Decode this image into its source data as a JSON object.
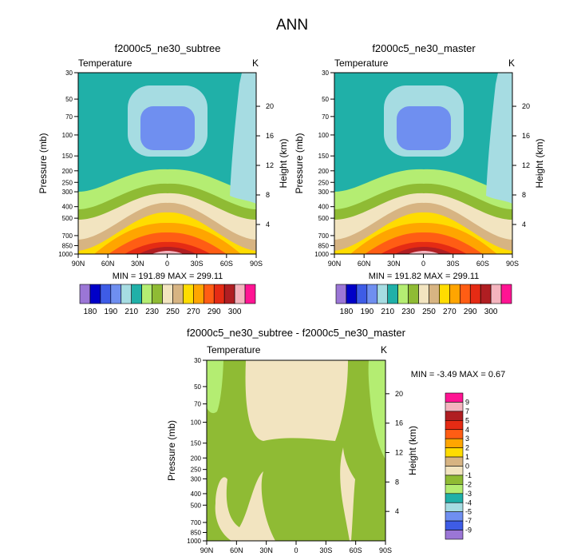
{
  "page_title": "ANN",
  "colors": {
    "t_palette": [
      "#9b76d6",
      "#0000c8",
      "#3e5ce6",
      "#6f8ff0",
      "#a6dce2",
      "#20b0a8",
      "#b4ed72",
      "#8fbb34",
      "#f2e4c0",
      "#d7b482",
      "#ffdc00",
      "#ffa500",
      "#ff5d14",
      "#e52b14",
      "#b01e22",
      "#f4b4be",
      "#ff1493"
    ],
    "d_palette": [
      "#9b76d6",
      "#0000c8",
      "#3e5ce6",
      "#6f8ff0",
      "#a6dce2",
      "#20b0a8",
      "#b4ed72",
      "#8fbb34",
      "#f2e4c0",
      "#d7b482",
      "#ffdc00",
      "#ffa500",
      "#ff5d14",
      "#e52b14",
      "#b01e22",
      "#f4b4be",
      "#ff1493"
    ]
  },
  "chart_data": [
    {
      "type": "heatmap",
      "title": "f2000c5_ne30_subtree",
      "variable": "Temperature",
      "units": "K",
      "ylabel": "Pressure (mb)",
      "y2label": "Height (km)",
      "x_ticks": [
        "90N",
        "60N",
        "30N",
        "0",
        "30S",
        "60S",
        "90S"
      ],
      "x_range": [
        90,
        -90
      ],
      "y_ticks": [
        30,
        50,
        70,
        100,
        150,
        200,
        250,
        300,
        400,
        500,
        700,
        850,
        1000
      ],
      "y_range": [
        30,
        1000
      ],
      "y_scale": "log",
      "y2_ticks": [
        4,
        8,
        12,
        16,
        20
      ],
      "stats": "MIN = 191.89  MAX = 299.11",
      "min": 191.89,
      "max": 299.11,
      "levels": [
        180,
        190,
        210,
        230,
        250,
        270,
        290,
        300
      ],
      "label_bar": [
        "180",
        "190",
        "210",
        "230",
        "250",
        "270",
        "290",
        "300"
      ],
      "palette_key": "t_palette"
    },
    {
      "type": "heatmap",
      "title": "f2000c5_ne30_master",
      "variable": "Temperature",
      "units": "K",
      "ylabel": "Pressure (mb)",
      "y2label": "Height (km)",
      "x_ticks": [
        "90N",
        "60N",
        "30N",
        "0",
        "30S",
        "60S",
        "90S"
      ],
      "x_range": [
        90,
        -90
      ],
      "y_ticks": [
        30,
        50,
        70,
        100,
        150,
        200,
        250,
        300,
        400,
        500,
        700,
        850,
        1000
      ],
      "y_range": [
        30,
        1000
      ],
      "y_scale": "log",
      "y2_ticks": [
        4,
        8,
        12,
        16,
        20
      ],
      "stats": "MIN = 191.82  MAX = 299.11",
      "min": 191.82,
      "max": 299.11,
      "label_bar": [
        "180",
        "190",
        "210",
        "230",
        "250",
        "270",
        "290",
        "300"
      ],
      "palette_key": "t_palette"
    },
    {
      "type": "heatmap",
      "title": "f2000c5_ne30_subtree - f2000c5_ne30_master",
      "variable": "Temperature",
      "units": "K",
      "ylabel": "Pressure (mb)",
      "y2label": "Height (km)",
      "x_ticks": [
        "90N",
        "60N",
        "30N",
        "0",
        "30S",
        "60S",
        "90S"
      ],
      "x_range": [
        90,
        -90
      ],
      "y_ticks": [
        30,
        50,
        70,
        100,
        150,
        200,
        250,
        300,
        400,
        500,
        700,
        850,
        1000
      ],
      "y_range": [
        30,
        1000
      ],
      "y_scale": "log",
      "y2_ticks": [
        4,
        8,
        12,
        16,
        20
      ],
      "stats": "MIN =  -3.49  MAX =  0.67",
      "min": -3.49,
      "max": 0.67,
      "label_bar": [
        "9",
        "7",
        "5",
        "4",
        "3",
        "2",
        "1",
        "0",
        "-1",
        "-2",
        "-3",
        "-4",
        "-5",
        "-7",
        "-9"
      ],
      "palette_key": "d_palette"
    }
  ]
}
